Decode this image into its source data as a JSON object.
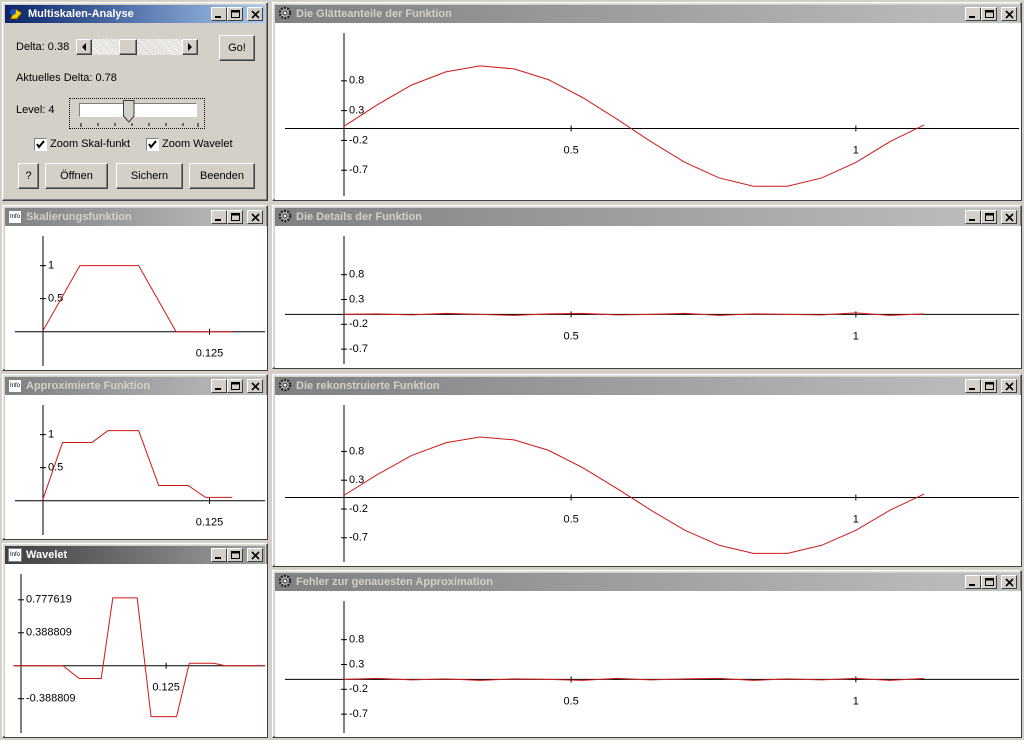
{
  "main_window": {
    "title": "Multiskalen-Analyse",
    "delta_label": "Delta: 0.38",
    "go_button": "Go!",
    "current_delta": "Aktuelles Delta: 0.78",
    "level_label": "Level: 4",
    "checkboxes": [
      "Zoom Skal-funkt",
      "Zoom Wavelet"
    ],
    "buttons": [
      "?",
      "Öffnen",
      "Sichern",
      "Beenden"
    ]
  },
  "plots": [
    {
      "type": "line",
      "title": "Die Glätteanteile der Funktion",
      "color": "#d01818",
      "xlim": [
        -0.02,
        1.29
      ],
      "ylim": [
        -1.2,
        1.77
      ],
      "xticks": [
        0.5,
        1
      ],
      "yticks": [
        0.8,
        0.3,
        -0.2,
        -0.7
      ],
      "x": [
        0.1,
        0.16,
        0.22,
        0.28,
        0.34,
        0.4,
        0.46,
        0.52,
        0.58,
        0.64,
        0.7,
        0.76,
        0.82,
        0.88,
        0.94,
        1.0,
        1.06,
        1.12
      ],
      "values": [
        0.03,
        0.4,
        0.73,
        0.95,
        1.05,
        1.0,
        0.82,
        0.52,
        0.16,
        -0.22,
        -0.57,
        -0.83,
        -0.97,
        -0.97,
        -0.83,
        -0.57,
        -0.22,
        0.06
      ]
    },
    {
      "type": "line",
      "title": "Die Details der Funktion",
      "color": "#d01818",
      "xlim": [
        -0.02,
        1.29
      ],
      "ylim": [
        -1.08,
        1.78
      ],
      "xticks": [
        0.5,
        1
      ],
      "yticks": [
        0.8,
        0.3,
        -0.2,
        -0.7
      ],
      "x": [
        0.1,
        0.16,
        0.22,
        0.28,
        0.34,
        0.4,
        0.46,
        0.52,
        0.58,
        0.64,
        0.7,
        0.76,
        0.82,
        0.88,
        0.94,
        1.0,
        1.06,
        1.12
      ],
      "values": [
        0,
        0.01,
        -0.01,
        0.02,
        0,
        -0.02,
        0.01,
        0.02,
        -0.01,
        0,
        0.02,
        -0.02,
        0.01,
        0,
        -0.01,
        0.03,
        -0.02,
        0.01
      ]
    },
    {
      "type": "line",
      "title": "Die rekonstruierte Funktion",
      "color": "#d01818",
      "xlim": [
        -0.02,
        1.29
      ],
      "ylim": [
        -1.19,
        1.78
      ],
      "xticks": [
        0.5,
        1
      ],
      "yticks": [
        0.8,
        0.3,
        -0.2,
        -0.7
      ],
      "x": [
        0.1,
        0.16,
        0.22,
        0.28,
        0.34,
        0.4,
        0.46,
        0.52,
        0.58,
        0.64,
        0.7,
        0.76,
        0.82,
        0.88,
        0.94,
        1.0,
        1.06,
        1.12
      ],
      "values": [
        0.03,
        0.4,
        0.73,
        0.95,
        1.05,
        1.0,
        0.82,
        0.52,
        0.16,
        -0.22,
        -0.57,
        -0.83,
        -0.97,
        -0.97,
        -0.83,
        -0.57,
        -0.22,
        0.06
      ]
    },
    {
      "type": "line",
      "title": "Fehler zur genauesten Approximation",
      "color": "#d01818",
      "xlim": [
        -0.02,
        1.29
      ],
      "ylim": [
        -1.16,
        1.78
      ],
      "xticks": [
        0.5,
        1
      ],
      "yticks": [
        0.8,
        0.3,
        -0.2,
        -0.7
      ],
      "x": [
        0.1,
        0.16,
        0.22,
        0.28,
        0.34,
        0.4,
        0.46,
        0.52,
        0.58,
        0.64,
        0.7,
        0.76,
        0.82,
        0.88,
        0.94,
        1.0,
        1.06,
        1.12
      ],
      "values": [
        0,
        0.02,
        -0.01,
        0.01,
        -0.02,
        0.01,
        0,
        -0.02,
        0.02,
        -0.01,
        0.01,
        0.02,
        -0.02,
        0.01,
        -0.01,
        0.02,
        -0.02,
        0.02
      ]
    },
    {
      "type": "line",
      "title": "Skalierungsfunktion",
      "icon_label": "Info",
      "color": "#d01818",
      "xlim": [
        -0.028,
        0.168
      ],
      "ylim": [
        -0.58,
        1.6
      ],
      "xticks": [
        0.125
      ],
      "yticks": [
        1,
        0.5
      ],
      "x": [
        0,
        0.028,
        0.072,
        0.1,
        0.142
      ],
      "values": [
        0,
        1,
        1,
        0,
        0
      ]
    },
    {
      "type": "line",
      "title": "Approximierte Funktion",
      "icon_label": "Info",
      "color": "#d01818",
      "xlim": [
        -0.028,
        0.168
      ],
      "ylim": [
        -0.58,
        1.6
      ],
      "xticks": [
        0.125
      ],
      "yticks": [
        1,
        0.5
      ],
      "x": [
        0,
        0.015,
        0.037,
        0.049,
        0.072,
        0.087,
        0.109,
        0.122,
        0.142
      ],
      "values": [
        0,
        0.88,
        0.88,
        1.06,
        1.06,
        0.23,
        0.23,
        0.05,
        0.05
      ]
    },
    {
      "type": "line",
      "title": "Wavelet",
      "icon_label": "Info",
      "color": "#d01818",
      "xlim": [
        -0.014,
        0.212
      ],
      "ylim": [
        -0.84,
        1.2
      ],
      "xticks": [
        0.125
      ],
      "yticks": [
        0.777619,
        0.388809,
        -0.388809
      ],
      "x": [
        -0.007,
        0.036,
        0.05,
        0.069,
        0.079,
        0.1,
        0.112,
        0.134,
        0.145,
        0.166,
        0.176,
        0.209
      ],
      "values": [
        0,
        0,
        -0.15,
        -0.15,
        0.8,
        0.8,
        -0.6,
        -0.6,
        0.03,
        0.03,
        0,
        0
      ]
    }
  ]
}
